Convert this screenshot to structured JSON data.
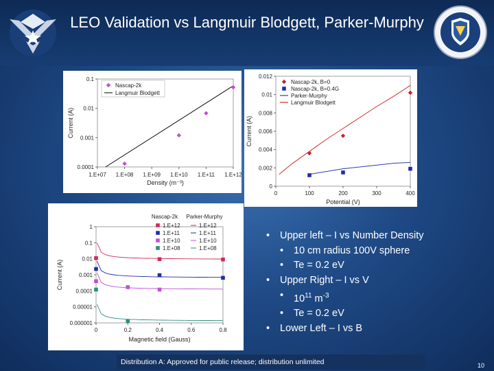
{
  "slide": {
    "title": "LEO Validation vs Langmuir Blodgett, Parker-Murphy",
    "footer": "Distribution A: Approved for public release; distribution unlimited",
    "page_number": "10",
    "bullets": [
      {
        "level": 1,
        "text": "Upper left – I vs Number Density"
      },
      {
        "level": 2,
        "text": "10 cm radius 100V sphere"
      },
      {
        "level": 2,
        "text": "Te = 0.2 eV"
      },
      {
        "level": 1,
        "text": "Upper Right – I vs V"
      },
      {
        "level": 2,
        "text_base": "10",
        "text_sup": "11",
        "text_unit": " m",
        "text_unit_sup": "-3"
      },
      {
        "level": 2,
        "text": "Te = 0.2 eV"
      },
      {
        "level": 1,
        "text": "Lower Left – I vs B"
      }
    ]
  },
  "colors": {
    "header": "#0e2a55",
    "background": "#1f4a86",
    "footer_bar": "#15315e"
  },
  "icons": [
    "air-force-wings-icon",
    "afrl-shield-icon"
  ],
  "chart_data": [
    {
      "type": "scatter",
      "title": "",
      "xlabel": "Density (m⁻³)",
      "ylabel": "Current (A)",
      "xscale": "log",
      "yscale": "log",
      "xlim": [
        10000000.0,
        1000000000000.0
      ],
      "ylim": [
        0.0001,
        0.1
      ],
      "xticks": [
        "1.E+07",
        "1.E+08",
        "1.E+09",
        "1.E+10",
        "1.E+11",
        "1.E+12"
      ],
      "yticks": [
        "0.0001",
        "0.001",
        "0.01",
        "0.1"
      ],
      "legend": [
        "Nascap-2k",
        "Langmuir Blodgett"
      ],
      "series": [
        {
          "name": "Nascap-2k",
          "kind": "points",
          "color": "#c24fd0",
          "x": [
            100000000.0,
            10000000000.0,
            100000000000.0,
            1000000000000.0
          ],
          "y": [
            0.00013,
            0.0012,
            0.0068,
            0.052
          ]
        },
        {
          "name": "Langmuir Blodgett",
          "kind": "line",
          "color": "#000000",
          "x": [
            20000000.0,
            1000000000000.0
          ],
          "y": [
            0.0001,
            0.059
          ]
        }
      ]
    },
    {
      "type": "line",
      "title": "",
      "xlabel": "Potential (V)",
      "ylabel": "Current (A)",
      "xlim": [
        0,
        400
      ],
      "ylim": [
        0,
        0.012
      ],
      "xticks": [
        "0",
        "100",
        "200",
        "300",
        "400"
      ],
      "yticks": [
        "0",
        "0.002",
        "0.004",
        "0.006",
        "0.008",
        "0.01",
        "0.012"
      ],
      "legend": [
        "Nascap-2k, B=0",
        "Nascap-2k, B=0.4G",
        "Parker-Murphy",
        "Langmuir Blodgett"
      ],
      "series": [
        {
          "name": "Nascap-2k, B=0",
          "kind": "points",
          "marker": "diamond",
          "color": "#c0262b",
          "x": [
            100,
            200,
            400
          ],
          "y": [
            0.0036,
            0.0055,
            0.0102
          ]
        },
        {
          "name": "Nascap-2k, B=0.4G",
          "kind": "points",
          "marker": "square",
          "color": "#1f2fa8",
          "x": [
            100,
            200,
            400
          ],
          "y": [
            0.0012,
            0.0015,
            0.0019
          ]
        },
        {
          "name": "Parker-Murphy",
          "kind": "line",
          "color": "#2c3fb0",
          "x": [
            100,
            150,
            200,
            250,
            300,
            350,
            400
          ],
          "y": [
            0.0013,
            0.0016,
            0.0019,
            0.0021,
            0.0023,
            0.0025,
            0.0026
          ]
        },
        {
          "name": "Langmuir Blodgett",
          "kind": "line",
          "color": "#d12a2a",
          "x": [
            10,
            50,
            100,
            150,
            200,
            250,
            300,
            350,
            400
          ],
          "y": [
            0.0013,
            0.0025,
            0.0038,
            0.0051,
            0.0063,
            0.0075,
            0.0087,
            0.0098,
            0.011
          ]
        }
      ]
    },
    {
      "type": "scatter",
      "title": "",
      "xlabel": "Magnetic field (Gauss)",
      "ylabel": "Current (A)",
      "yscale": "log",
      "xlim": [
        0,
        0.8
      ],
      "ylim": [
        1e-06,
        1
      ],
      "xticks": [
        "0",
        "0.2",
        "0.4",
        "0.6",
        "0.8"
      ],
      "yticks": [
        "0.000001",
        "0.00001",
        "0.0001",
        "0.001",
        "0.01",
        "0.1",
        "1"
      ],
      "legend_headers": [
        "Nascap-2k",
        "Parker-Murphy"
      ],
      "legend": [
        {
          "label": "1.E+12",
          "color": "#d02a56"
        },
        {
          "label": "1.E+11",
          "color": "#1f2fa8"
        },
        {
          "label": "1.E+10",
          "color": "#c44fd6"
        },
        {
          "label": "1.E+08",
          "color": "#2b8f80"
        }
      ],
      "series": [
        {
          "name": "1.E+12",
          "color": "#d02a56",
          "kind": "points",
          "x": [
            0,
            0.4,
            0.8
          ],
          "y": [
            0.011,
            0.0095,
            0.009
          ]
        },
        {
          "name": "1.E+11",
          "color": "#1f2fa8",
          "kind": "points",
          "x": [
            0,
            0.4,
            0.8
          ],
          "y": [
            0.0023,
            0.00095,
            0.00065
          ]
        },
        {
          "name": "1.E+10",
          "color": "#c44fd6",
          "kind": "points",
          "x": [
            0,
            0.2,
            0.4
          ],
          "y": [
            0.0004,
            0.00017,
            0.00012
          ]
        },
        {
          "name": "1.E+08",
          "color": "#2b8f80",
          "kind": "points",
          "x": [
            0,
            0.2
          ],
          "y": [
            0.00012,
            1.3e-06
          ]
        }
      ]
    }
  ]
}
